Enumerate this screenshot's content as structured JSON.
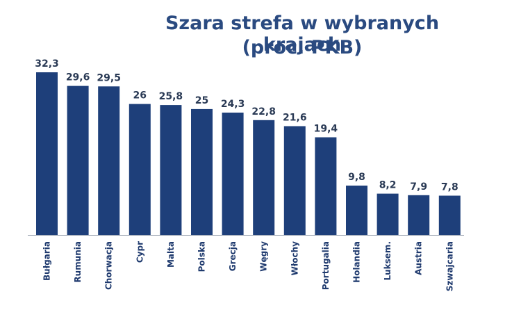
{
  "chart_data": {
    "type": "bar",
    "title": "Szara strefa w wybranych krajach",
    "subtitle": "(proc. PKB)",
    "categories": [
      "Bułgaria",
      "Rumunia",
      "Chorwacja",
      "Cypr",
      "Malta",
      "Polska",
      "Grecja",
      "Węgry",
      "Włochy",
      "Portugalia",
      "Holandia",
      "Luksem.",
      "Austria",
      "Szwajcaria"
    ],
    "values": [
      32.3,
      29.6,
      29.5,
      26,
      25.8,
      25,
      24.3,
      22.8,
      21.6,
      19.4,
      9.8,
      8.2,
      7.9,
      7.8
    ],
    "value_labels": [
      "32,3",
      "29,6",
      "29,5",
      "26",
      "25,8",
      "25",
      "24,3",
      "22,8",
      "21,6",
      "19,4",
      "9,8",
      "8,2",
      "7,9",
      "7,8"
    ],
    "xlabel": "",
    "ylabel": "",
    "ylim": [
      0,
      32.3
    ],
    "grid": false,
    "bar_color": "#1e3f7a",
    "title_color": "#2a4a80"
  }
}
